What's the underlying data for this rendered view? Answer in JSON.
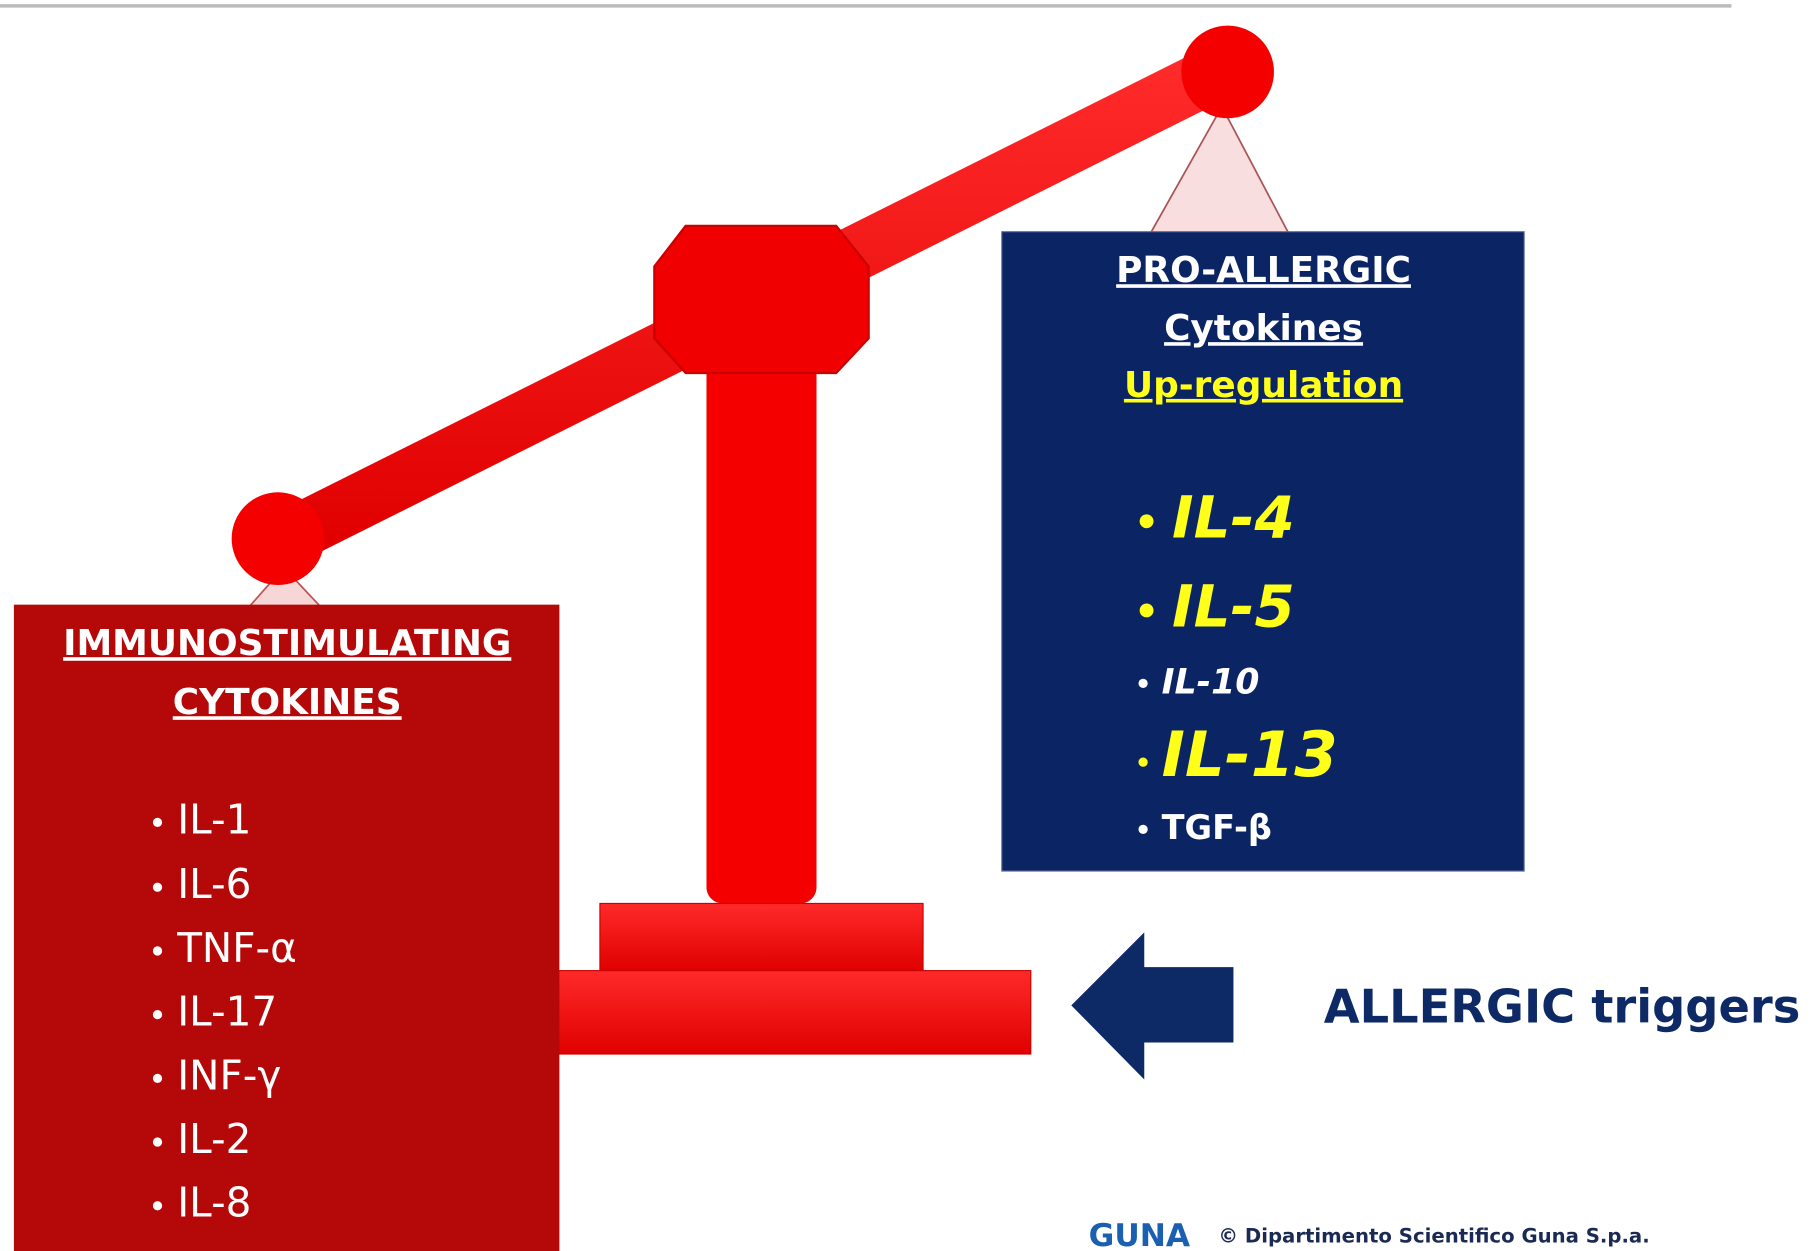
{
  "left_panel": {
    "title": [
      "IMMUNOSTIMULATING",
      "CYTOKINES"
    ],
    "items": [
      "IL-1",
      "IL-6",
      "TNF-α",
      "IL-17",
      "INF-γ",
      "IL-2",
      "IL-8"
    ]
  },
  "right_panel": {
    "title": [
      "PRO-ALLERGIC",
      "Cytokines"
    ],
    "subtitle": "Up-regulation",
    "items": [
      "IL-4",
      "IL-5",
      "IL-10",
      "IL-13",
      "TGF-β"
    ]
  },
  "trigger": {
    "label": "ALLERGIC triggers"
  },
  "footer": {
    "logo": "GUNA",
    "credit": "© Dipartimento Scientifico Guna S.p.a."
  }
}
